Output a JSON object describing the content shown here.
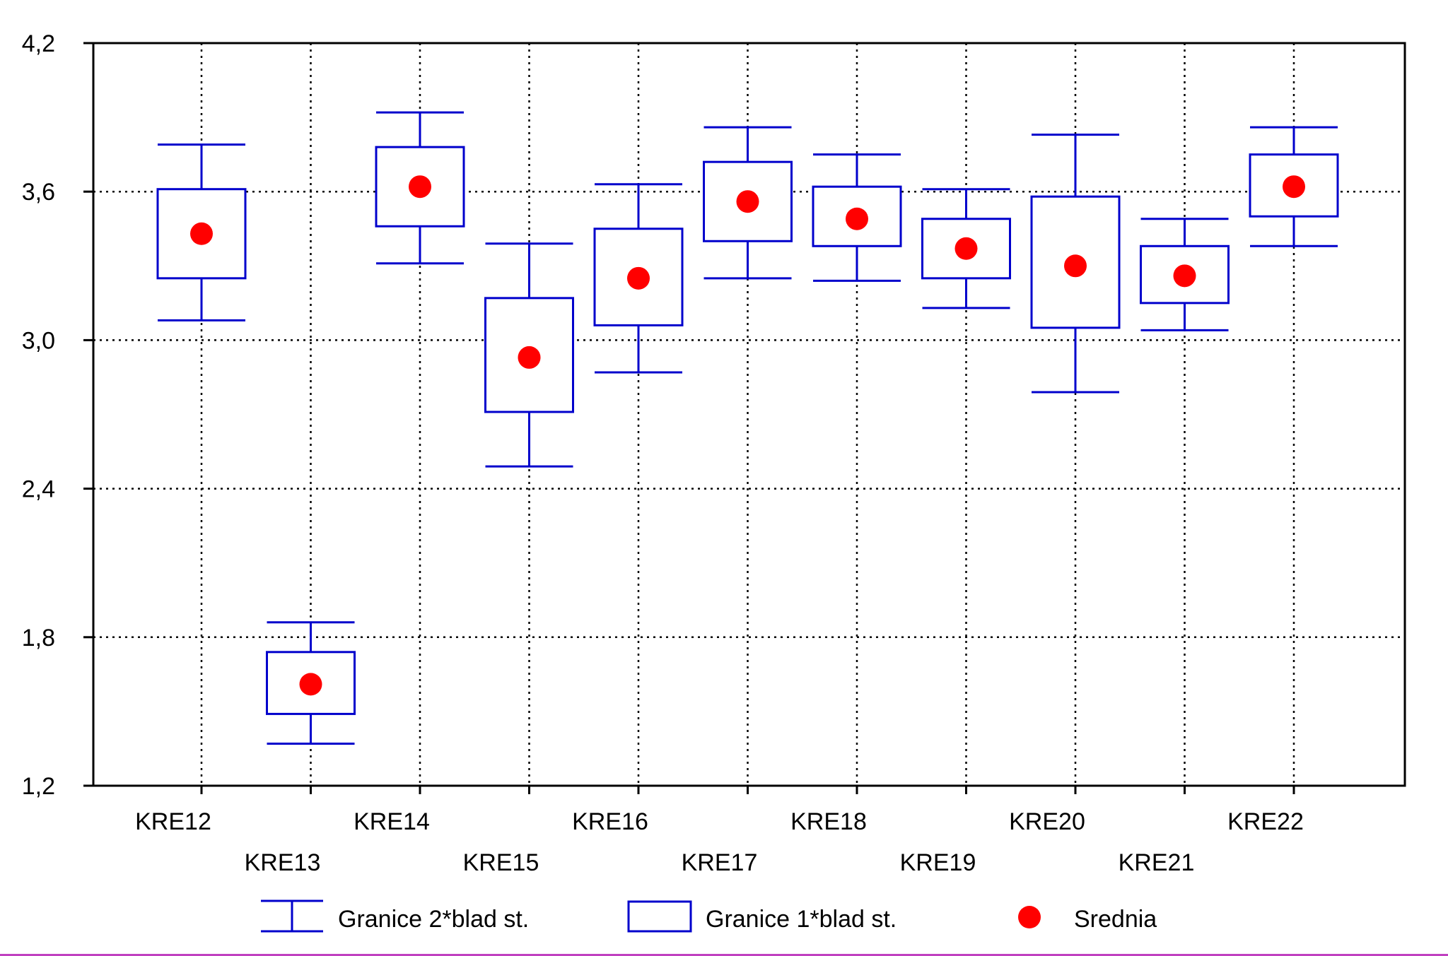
{
  "chart_data": {
    "type": "box",
    "categories": [
      "KRE12",
      "KRE13",
      "KRE14",
      "KRE15",
      "KRE16",
      "KRE17",
      "KRE18",
      "KRE19",
      "KRE20",
      "KRE21",
      "KRE22"
    ],
    "series": [
      {
        "name": "Srednia",
        "values": [
          3.43,
          1.61,
          3.62,
          2.93,
          3.25,
          3.56,
          3.49,
          3.37,
          3.3,
          3.26,
          3.62
        ]
      },
      {
        "name": "Granice 1*blad st.",
        "low": [
          3.25,
          1.49,
          3.46,
          2.71,
          3.06,
          3.4,
          3.38,
          3.25,
          3.05,
          3.15,
          3.5
        ],
        "high": [
          3.61,
          1.74,
          3.78,
          3.17,
          3.45,
          3.72,
          3.62,
          3.49,
          3.58,
          3.38,
          3.75
        ]
      },
      {
        "name": "Granice 2*blad st.",
        "low": [
          3.08,
          1.37,
          3.31,
          2.49,
          2.87,
          3.25,
          3.24,
          3.13,
          2.79,
          3.04,
          3.38
        ],
        "high": [
          3.79,
          1.86,
          3.92,
          3.39,
          3.63,
          3.86,
          3.75,
          3.61,
          3.83,
          3.49,
          3.86
        ]
      }
    ],
    "y_ticks": [
      "1,2",
      "1,8",
      "2,4",
      "3,0",
      "3,6",
      "4,2"
    ],
    "y_tick_values": [
      1.2,
      1.8,
      2.4,
      3.0,
      3.6,
      4.2
    ],
    "ylim": [
      1.2,
      4.2
    ],
    "grid": true,
    "legend_position": "bottom",
    "colors": {
      "box": "#0000cc",
      "mean": "#ff0000",
      "grid": "#000000"
    }
  }
}
